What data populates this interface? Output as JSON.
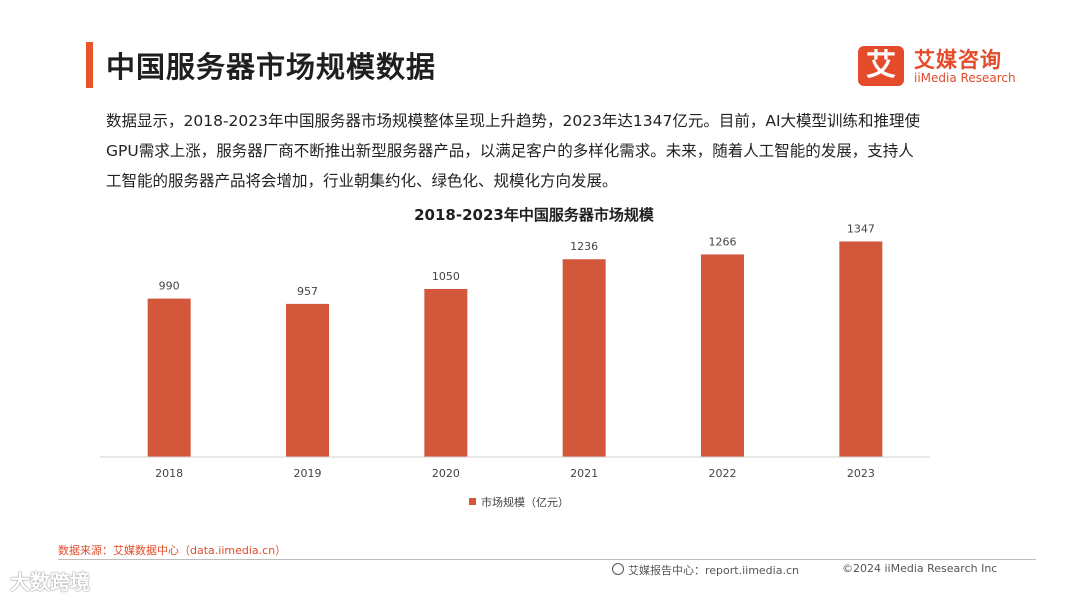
{
  "header": {
    "title": "中国服务器市场规模数据"
  },
  "logo": {
    "mark": "艾",
    "cn": "艾媒咨询",
    "en": "iiMedia Research"
  },
  "description": {
    "line1": "数据显示，2018-2023年中国服务器市场规模整体呈现上升趋势，2023年达1347亿元。目前，AI大模型训练和推理使",
    "line2": "GPU需求上涨，服务器厂商不断推出新型服务器产品，以满足客户的多样化需求。未来，随着人工智能的发展，支持人",
    "line3": "工智能的服务器产品将会增加，行业朝集约化、绿色化、规模化方向发展。"
  },
  "chart_data": {
    "type": "bar",
    "title": "2018-2023年中国服务器市场规模",
    "categories": [
      "2018",
      "2019",
      "2020",
      "2021",
      "2022",
      "2023"
    ],
    "values": [
      990,
      957,
      1050,
      1236,
      1266,
      1347
    ],
    "legend": "市场规模（亿元）",
    "legend_position": "bottom",
    "bar_color": "#d3573a",
    "ylim": [
      0,
      1400
    ],
    "grid": false
  },
  "footer": {
    "source": "数据来源：艾媒数据中心（data.iimedia.cn）",
    "report": "艾媒报告中心：report.iimedia.cn",
    "copyright": "©2024  iiMedia Research  Inc"
  },
  "watermark": "大数跨境",
  "colors": {
    "accent": "#e8552b",
    "bar": "#d3573a"
  }
}
